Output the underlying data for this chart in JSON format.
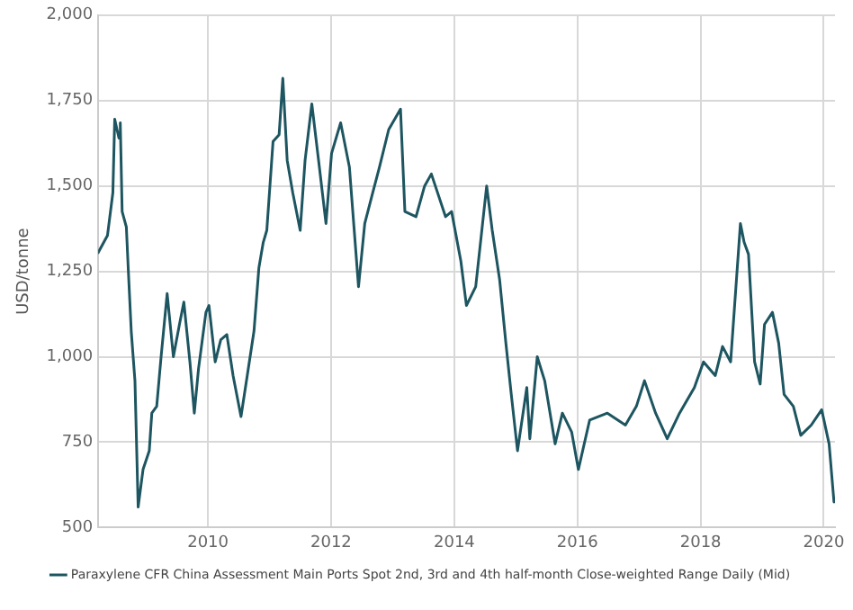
{
  "chart_data": {
    "type": "line",
    "ylabel": "USD/tonne",
    "legend": "bottom",
    "grid": true,
    "marker": "none",
    "line_style": "solid",
    "xlim": [
      "2008-03-21",
      "2020-03-08"
    ],
    "xticks": [
      "2010",
      "2012",
      "2014",
      "2016",
      "2018",
      "2020"
    ],
    "ylim": [
      500,
      2000
    ],
    "yticks": [
      {
        "value": 500,
        "label": "500"
      },
      {
        "value": 750,
        "label": "750"
      },
      {
        "value": 1000,
        "label": "1,000"
      },
      {
        "value": 1250,
        "label": "1,250"
      },
      {
        "value": 1500,
        "label": "1,500"
      },
      {
        "value": 1750,
        "label": "1,750"
      },
      {
        "value": 2000,
        "label": "2,000"
      }
    ],
    "x": [
      "2008-03-21",
      "2008-05-15",
      "2008-06-16",
      "2008-06-27",
      "2008-07-22",
      "2008-07-30",
      "2008-08-10",
      "2008-09-04",
      "2008-09-15",
      "2008-10-03",
      "2008-10-25",
      "2008-11-13",
      "2008-12-12",
      "2009-01-18",
      "2009-02-02",
      "2009-03-03",
      "2009-03-29",
      "2009-05-04",
      "2009-06-10",
      "2009-07-16",
      "2009-08-11",
      "2009-09-16",
      "2009-10-12",
      "2009-11-06",
      "2009-12-20",
      "2010-01-07",
      "2010-02-13",
      "2010-03-18",
      "2010-04-23",
      "2010-05-30",
      "2010-07-16",
      "2010-08-22",
      "2010-10-01",
      "2010-10-30",
      "2010-11-25",
      "2010-12-16",
      "2011-01-22",
      "2011-02-27",
      "2011-03-21",
      "2011-04-16",
      "2011-05-19",
      "2011-07-02",
      "2011-07-31",
      "2011-09-09",
      "2011-10-19",
      "2011-12-02",
      "2012-01-04",
      "2012-02-27",
      "2012-04-19",
      "2012-06-12",
      "2012-07-19",
      "2012-09-04",
      "2012-10-14",
      "2012-12-08",
      "2013-02-16",
      "2013-03-14",
      "2013-05-19",
      "2013-07-09",
      "2013-08-18",
      "2013-11-10",
      "2013-12-16",
      "2014-02-09",
      "2014-03-14",
      "2014-05-08",
      "2014-07-12",
      "2014-08-14",
      "2014-09-27",
      "2014-11-03",
      "2014-12-05",
      "2015-01-11",
      "2015-03-07",
      "2015-03-25",
      "2015-05-08",
      "2015-06-21",
      "2015-08-22",
      "2015-10-04",
      "2015-11-28",
      "2016-01-07",
      "2016-03-14",
      "2016-06-27",
      "2016-10-12",
      "2016-12-16",
      "2017-02-02",
      "2017-04-09",
      "2017-06-17",
      "2017-08-29",
      "2017-11-25",
      "2018-01-18",
      "2018-03-29",
      "2018-05-11",
      "2018-06-28",
      "2018-08-25",
      "2018-09-16",
      "2018-10-12",
      "2018-11-17",
      "2018-12-20",
      "2019-01-15",
      "2019-03-03",
      "2019-04-09",
      "2019-05-11",
      "2019-07-05",
      "2019-08-18",
      "2019-10-19",
      "2019-12-20",
      "2020-02-02",
      "2020-03-02"
    ],
    "series": [
      {
        "name": "Paraxylene CFR China Assessment Main Ports Spot 2nd, 3rd and 4th half-month Close-weighted Range Daily (Mid)",
        "color": "#1d5560",
        "values": [
          1305,
          1355,
          1480,
          1695,
          1640,
          1685,
          1425,
          1380,
          1260,
          1075,
          930,
          560,
          670,
          725,
          835,
          855,
          1000,
          1185,
          1000,
          1095,
          1160,
          985,
          835,
          965,
          1130,
          1150,
          985,
          1050,
          1065,
          945,
          825,
          945,
          1075,
          1260,
          1335,
          1370,
          1630,
          1650,
          1815,
          1575,
          1480,
          1370,
          1575,
          1740,
          1575,
          1390,
          1595,
          1685,
          1555,
          1205,
          1390,
          1480,
          1555,
          1665,
          1725,
          1425,
          1410,
          1500,
          1535,
          1410,
          1425,
          1280,
          1150,
          1205,
          1500,
          1370,
          1225,
          1040,
          890,
          725,
          910,
          760,
          1000,
          930,
          745,
          835,
          780,
          670,
          815,
          835,
          800,
          855,
          930,
          835,
          760,
          835,
          910,
          985,
          945,
          1030,
          985,
          1390,
          1335,
          1300,
          985,
          920,
          1095,
          1130,
          1040,
          890,
          855,
          770,
          800,
          845,
          745,
          575
        ]
      }
    ]
  }
}
